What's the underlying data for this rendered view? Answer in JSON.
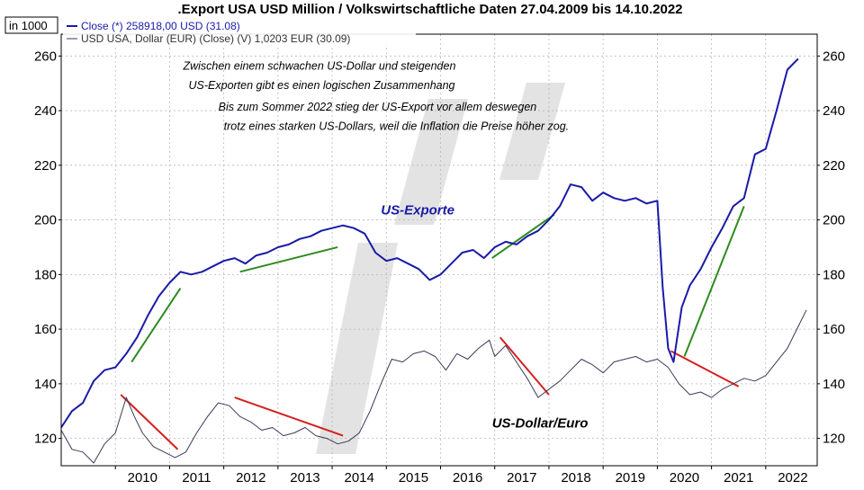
{
  "chart_data": {
    "type": "line",
    "title": ".Export USA USD Million / Volkswirtschaftliche Daten 27.04.2009 bis 14.10.2022",
    "unit_label": "in 1000",
    "ylim": [
      110,
      268
    ],
    "yticks": [
      120,
      140,
      160,
      180,
      200,
      220,
      240,
      260
    ],
    "xlim": [
      2009.0,
      2022.95
    ],
    "xticks": [
      "2010",
      "2011",
      "2012",
      "2013",
      "2014",
      "2015",
      "2016",
      "2017",
      "2018",
      "2019",
      "2020",
      "2021",
      "2022"
    ],
    "grid": true,
    "legend_position": "top-left",
    "series": [
      {
        "name": "Close (*) 258918,00 USD (31.08)",
        "color": "#1a1aa8",
        "x": [
          2009.0,
          2009.2,
          2009.4,
          2009.6,
          2009.8,
          2010.0,
          2010.2,
          2010.4,
          2010.6,
          2010.8,
          2011.0,
          2011.2,
          2011.4,
          2011.6,
          2011.8,
          2012.0,
          2012.2,
          2012.4,
          2012.6,
          2012.8,
          2013.0,
          2013.2,
          2013.4,
          2013.6,
          2013.8,
          2014.0,
          2014.2,
          2014.4,
          2014.6,
          2014.8,
          2015.0,
          2015.2,
          2015.4,
          2015.6,
          2015.8,
          2016.0,
          2016.2,
          2016.4,
          2016.6,
          2016.8,
          2017.0,
          2017.2,
          2017.4,
          2017.6,
          2017.8,
          2018.0,
          2018.2,
          2018.4,
          2018.6,
          2018.8,
          2019.0,
          2019.2,
          2019.4,
          2019.6,
          2019.8,
          2020.0,
          2020.1,
          2020.2,
          2020.3,
          2020.45,
          2020.6,
          2020.8,
          2021.0,
          2021.2,
          2021.4,
          2021.6,
          2021.8,
          2022.0,
          2022.2,
          2022.4,
          2022.6
        ],
        "y": [
          124,
          130,
          133,
          141,
          145,
          146,
          151,
          157,
          165,
          172,
          177,
          181,
          180,
          181,
          183,
          185,
          186,
          184,
          187,
          188,
          190,
          191,
          193,
          194,
          196,
          197,
          198,
          197,
          195,
          188,
          185,
          186,
          184,
          182,
          178,
          180,
          184,
          188,
          189,
          186,
          190,
          192,
          191,
          194,
          196,
          200,
          205,
          213,
          212,
          207,
          210,
          208,
          207,
          208,
          206,
          207,
          175,
          153,
          148,
          168,
          176,
          182,
          190,
          197,
          205,
          208,
          224,
          226,
          240,
          255,
          259
        ]
      },
      {
        "name": "USD USA, Dollar (EUR) (Close) (V) 1,0203 EUR (30.09)",
        "color": "#3a3a58",
        "x": [
          2009.0,
          2009.2,
          2009.4,
          2009.6,
          2009.8,
          2010.0,
          2010.2,
          2010.35,
          2010.5,
          2010.7,
          2010.9,
          2011.1,
          2011.3,
          2011.5,
          2011.7,
          2011.9,
          2012.1,
          2012.3,
          2012.5,
          2012.7,
          2012.9,
          2013.1,
          2013.3,
          2013.5,
          2013.7,
          2013.9,
          2014.1,
          2014.3,
          2014.5,
          2014.7,
          2014.9,
          2015.1,
          2015.3,
          2015.5,
          2015.7,
          2015.9,
          2016.1,
          2016.3,
          2016.5,
          2016.7,
          2016.9,
          2017.0,
          2017.2,
          2017.4,
          2017.6,
          2017.8,
          2018.0,
          2018.2,
          2018.4,
          2018.6,
          2018.8,
          2019.0,
          2019.2,
          2019.4,
          2019.6,
          2019.8,
          2020.0,
          2020.2,
          2020.4,
          2020.6,
          2020.8,
          2021.0,
          2021.2,
          2021.4,
          2021.6,
          2021.8,
          2022.0,
          2022.2,
          2022.4,
          2022.6,
          2022.75
        ],
        "y": [
          123,
          116,
          115,
          111,
          118,
          122,
          135,
          128,
          122,
          117,
          115,
          113,
          115,
          122,
          128,
          133,
          132,
          128,
          126,
          123,
          124,
          121,
          122,
          124,
          121,
          120,
          118,
          119,
          122,
          130,
          140,
          149,
          148,
          151,
          152,
          150,
          145,
          151,
          149,
          153,
          156,
          150,
          154,
          148,
          142,
          135,
          138,
          141,
          145,
          149,
          147,
          144,
          148,
          149,
          150,
          148,
          149,
          146,
          140,
          136,
          137,
          135,
          138,
          140,
          142,
          141,
          143,
          148,
          153,
          161,
          167
        ]
      }
    ],
    "trendlines": {
      "green": [
        {
          "from": [
            2010.3,
            148
          ],
          "to": [
            2011.2,
            175
          ]
        },
        {
          "from": [
            2012.3,
            181
          ],
          "to": [
            2014.1,
            190
          ]
        },
        {
          "from": [
            2016.95,
            186
          ],
          "to": [
            2018.1,
            202
          ]
        },
        {
          "from": [
            2020.5,
            150
          ],
          "to": [
            2021.6,
            205
          ]
        }
      ],
      "red": [
        {
          "from": [
            2010.1,
            136
          ],
          "to": [
            2011.15,
            116
          ]
        },
        {
          "from": [
            2012.2,
            135
          ],
          "to": [
            2014.2,
            121
          ]
        },
        {
          "from": [
            2017.1,
            157
          ],
          "to": [
            2018.0,
            136
          ]
        },
        {
          "from": [
            2020.25,
            152
          ],
          "to": [
            2021.5,
            139
          ]
        }
      ]
    },
    "annotations": [
      {
        "text": "Zwischen einem schwachen US-Dollar und steigenden",
        "x": 2011.25,
        "y": 255
      },
      {
        "text": "US-Exporten gibt es einen logischen Zusammenhang",
        "x": 2011.35,
        "y": 248
      },
      {
        "text": "Bis zum Sommer 2022 stieg der US-Export vor allem deswegen",
        "x": 2011.9,
        "y": 240
      },
      {
        "text": "trotz eines starken US-Dollars, weil die Inflation die Preise höher zog.",
        "x": 2012.0,
        "y": 233
      }
    ],
    "series_labels": [
      {
        "text": "US-Exporte",
        "x": 2014.9,
        "y": 202,
        "color": "#1a1aa8"
      },
      {
        "text": "US-Dollar/Euro",
        "x": 2016.95,
        "y": 124,
        "color": "#000000"
      }
    ]
  }
}
